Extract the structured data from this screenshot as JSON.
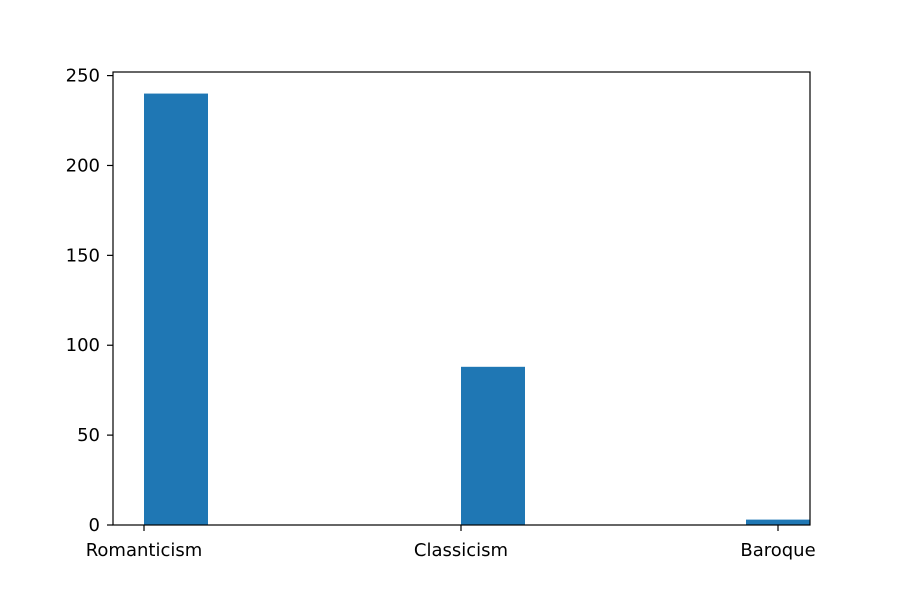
{
  "chart_data": {
    "type": "bar",
    "title": "",
    "xlabel": "",
    "ylabel": "",
    "categories": [
      "Romanticism",
      "Classicism",
      "Baroque"
    ],
    "values": [
      240,
      88,
      3
    ],
    "ylim": [
      0,
      252
    ],
    "yticks": [
      0,
      50,
      100,
      150,
      200,
      250
    ],
    "grid": false,
    "legend": "none",
    "bar_color": "#1f77b4"
  }
}
